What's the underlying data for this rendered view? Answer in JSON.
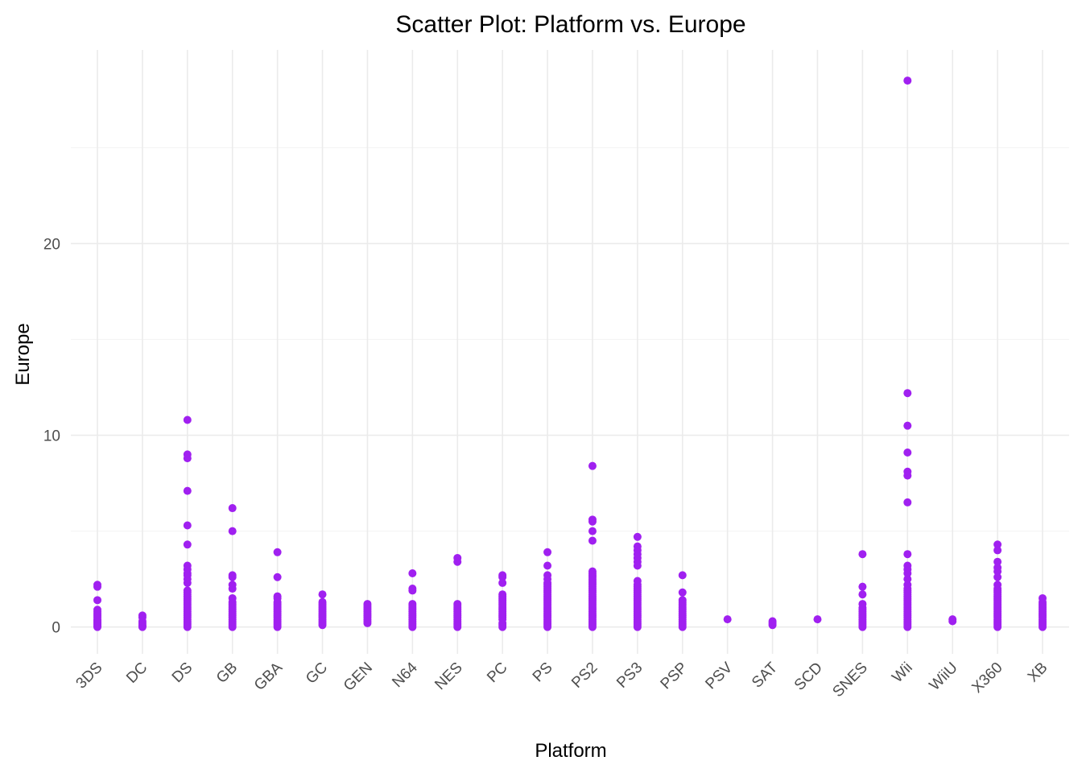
{
  "chart_data": {
    "type": "scatter",
    "title": "Scatter Plot: Platform vs. Europe",
    "xlabel": "Platform",
    "ylabel": "Europe",
    "categories": [
      "3DS",
      "DC",
      "DS",
      "GB",
      "GBA",
      "GC",
      "GEN",
      "N64",
      "NES",
      "PC",
      "PS",
      "PS2",
      "PS3",
      "PSP",
      "PSV",
      "SAT",
      "SCD",
      "SNES",
      "Wii",
      "WiiU",
      "X360",
      "XB"
    ],
    "yticks": [
      0,
      10,
      20
    ],
    "ylim": [
      -1.4,
      30.1
    ],
    "grid": true,
    "point_color": "#a020f0",
    "points": {
      "3DS": [
        0,
        0.05,
        0.1,
        0.15,
        0.2,
        0.25,
        0.3,
        0.35,
        0.4,
        0.5,
        0.6,
        0.7,
        0.8,
        0.9,
        1.4,
        2.1,
        2.2
      ],
      "DC": [
        0,
        0.05,
        0.1,
        0.2,
        0.3,
        0.5,
        0.6
      ],
      "DS": [
        0,
        0.1,
        0.2,
        0.3,
        0.4,
        0.5,
        0.6,
        0.7,
        0.8,
        0.9,
        1.0,
        1.1,
        1.2,
        1.3,
        1.4,
        1.5,
        1.6,
        1.7,
        1.8,
        1.9,
        2.3,
        2.5,
        2.7,
        2.8,
        3.0,
        3.2,
        4.3,
        5.3,
        7.1,
        8.8,
        9.0,
        10.8
      ],
      "GB": [
        0,
        0.1,
        0.2,
        0.3,
        0.4,
        0.5,
        0.6,
        0.7,
        0.8,
        0.9,
        1.0,
        1.1,
        1.2,
        1.3,
        1.5,
        2.0,
        2.2,
        2.6,
        2.7,
        5.0,
        6.2
      ],
      "GBA": [
        0,
        0.1,
        0.2,
        0.3,
        0.4,
        0.5,
        0.6,
        0.7,
        0.8,
        0.9,
        1.0,
        1.1,
        1.2,
        1.3,
        1.5,
        1.6,
        2.6,
        3.9
      ],
      "GC": [
        0.1,
        0.2,
        0.3,
        0.4,
        0.5,
        0.6,
        0.7,
        0.8,
        0.9,
        1.0,
        1.1,
        1.2,
        1.3,
        1.7
      ],
      "GEN": [
        0.2,
        0.3,
        0.4,
        0.5,
        0.6,
        0.7,
        0.8,
        0.9,
        1.0,
        1.1,
        1.2
      ],
      "N64": [
        0,
        0.1,
        0.2,
        0.3,
        0.4,
        0.5,
        0.6,
        0.7,
        0.8,
        0.9,
        1.0,
        1.1,
        1.2,
        1.9,
        2.0,
        2.8
      ],
      "NES": [
        0,
        0.1,
        0.2,
        0.3,
        0.4,
        0.5,
        0.6,
        0.7,
        0.8,
        0.9,
        1.0,
        1.1,
        1.2,
        3.4,
        3.6
      ],
      "PC": [
        0,
        0.1,
        0.2,
        0.4,
        0.5,
        0.6,
        0.7,
        0.8,
        0.9,
        1.0,
        1.1,
        1.2,
        1.3,
        1.4,
        1.5,
        1.6,
        1.7,
        2.3,
        2.6,
        2.7
      ],
      "PS": [
        0,
        0.1,
        0.2,
        0.3,
        0.4,
        0.5,
        0.6,
        0.7,
        0.8,
        0.9,
        1.0,
        1.1,
        1.2,
        1.3,
        1.4,
        1.5,
        1.6,
        1.7,
        1.8,
        1.9,
        2.0,
        2.1,
        2.2,
        2.3,
        2.5,
        2.7,
        3.2,
        3.9
      ],
      "PS2": [
        0,
        0.1,
        0.2,
        0.3,
        0.4,
        0.5,
        0.6,
        0.7,
        0.8,
        0.9,
        1.0,
        1.1,
        1.2,
        1.3,
        1.4,
        1.5,
        1.6,
        1.7,
        1.8,
        1.9,
        2.0,
        2.1,
        2.2,
        2.3,
        2.4,
        2.5,
        2.6,
        2.7,
        2.8,
        2.9,
        4.5,
        5.0,
        5.5,
        5.6,
        8.4
      ],
      "PS3": [
        0,
        0.1,
        0.2,
        0.3,
        0.4,
        0.5,
        0.6,
        0.7,
        0.8,
        0.9,
        1.0,
        1.1,
        1.2,
        1.3,
        1.4,
        1.5,
        1.6,
        1.7,
        1.8,
        1.9,
        2.0,
        2.1,
        2.2,
        2.4,
        3.2,
        3.4,
        3.6,
        3.8,
        4.0,
        4.2,
        4.7
      ],
      "PSP": [
        0,
        0.1,
        0.2,
        0.3,
        0.4,
        0.5,
        0.6,
        0.7,
        0.8,
        0.9,
        1.0,
        1.1,
        1.2,
        1.3,
        1.4,
        1.8,
        2.7
      ],
      "PSV": [
        0.4
      ],
      "SAT": [
        0.1,
        0.2,
        0.3
      ],
      "SCD": [
        0.4
      ],
      "SNES": [
        0,
        0.1,
        0.2,
        0.3,
        0.4,
        0.5,
        0.6,
        0.7,
        0.8,
        0.9,
        1.0,
        1.2,
        1.7,
        2.1,
        3.8
      ],
      "Wii": [
        0,
        0.1,
        0.2,
        0.3,
        0.4,
        0.5,
        0.6,
        0.7,
        0.8,
        0.9,
        1.0,
        1.1,
        1.2,
        1.3,
        1.4,
        1.5,
        1.6,
        1.7,
        1.8,
        1.9,
        2.0,
        2.2,
        2.5,
        2.8,
        3.0,
        3.2,
        3.8,
        6.5,
        7.9,
        8.1,
        9.1,
        10.5,
        12.2,
        28.5
      ],
      "WiiU": [
        0.3,
        0.4
      ],
      "X360": [
        0,
        0.1,
        0.2,
        0.3,
        0.4,
        0.5,
        0.6,
        0.7,
        0.8,
        0.9,
        1.0,
        1.1,
        1.2,
        1.3,
        1.4,
        1.5,
        1.6,
        1.7,
        1.8,
        1.9,
        2.0,
        2.2,
        2.6,
        2.9,
        3.1,
        3.4,
        4.0,
        4.3
      ],
      "XB": [
        0,
        0.1,
        0.2,
        0.3,
        0.4,
        0.5,
        0.6,
        0.7,
        0.8,
        0.9,
        1.0,
        1.1,
        1.2,
        1.3,
        1.5
      ]
    }
  }
}
